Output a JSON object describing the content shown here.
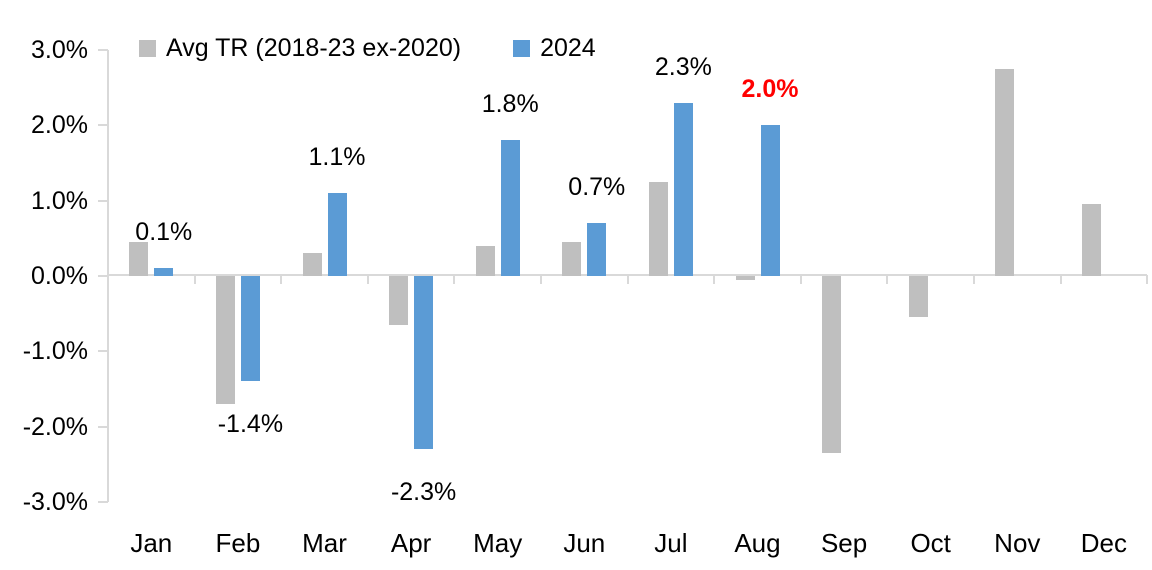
{
  "chart_data": {
    "type": "bar",
    "title": "",
    "categories": [
      "Jan",
      "Feb",
      "Mar",
      "Apr",
      "May",
      "Jun",
      "Jul",
      "Aug",
      "Sep",
      "Oct",
      "Nov",
      "Dec"
    ],
    "series": [
      {
        "name": "Avg TR (2018-23 ex-2020)",
        "color": "#BFBFBF",
        "values": [
          0.45,
          -1.7,
          0.3,
          -0.65,
          0.4,
          0.45,
          1.25,
          -0.05,
          -2.35,
          -0.55,
          2.75,
          0.95
        ]
      },
      {
        "name": "2024",
        "color": "#5B9BD5",
        "values": [
          0.1,
          -1.4,
          1.1,
          -2.3,
          1.8,
          0.7,
          2.3,
          2.0,
          null,
          null,
          null,
          null
        ],
        "data_labels": [
          "0.1%",
          "-1.4%",
          "1.1%",
          "-2.3%",
          "1.8%",
          "0.7%",
          "2.3%",
          "2.0%",
          null,
          null,
          null,
          null
        ],
        "label_color": "#000000",
        "highlight": {
          "category": "Aug",
          "label": "2.0%",
          "label_color": "#FF0000",
          "bold": true
        }
      }
    ],
    "ylim": [
      -3.0,
      3.0
    ],
    "ytick_labels": [
      "3.0%",
      "2.0%",
      "1.0%",
      "0.0%",
      "-1.0%",
      "-2.0%",
      "-3.0%"
    ],
    "xlabel": "",
    "ylabel": "",
    "grid": false,
    "legend_position": "top",
    "axis_color": "#D9D9D9",
    "text_color": "#000000",
    "background": "#FFFFFF"
  }
}
